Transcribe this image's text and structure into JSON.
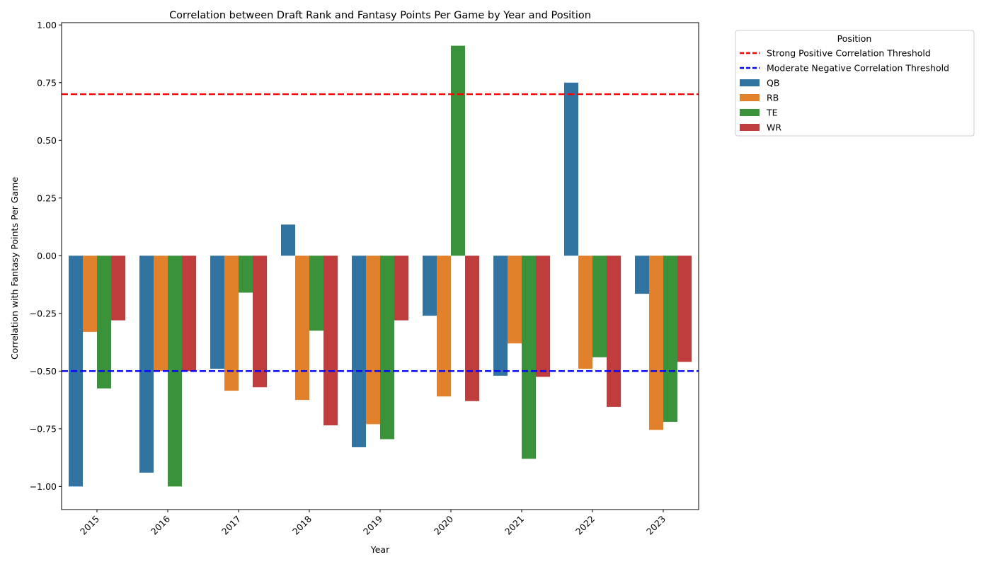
{
  "chart_data": {
    "type": "bar",
    "title": "Correlation between Draft Rank and Fantasy Points Per Game by Year and Position",
    "xlabel": "Year",
    "ylabel": "Correlation with Fantasy Points Per Game",
    "categories": [
      "2015",
      "2016",
      "2017",
      "2018",
      "2019",
      "2020",
      "2021",
      "2022",
      "2023"
    ],
    "ylim": [
      -1.1,
      1.01
    ],
    "yticks": [
      -1.0,
      -0.75,
      -0.5,
      -0.25,
      0.0,
      0.25,
      0.5,
      0.75,
      1.0
    ],
    "ytick_labels": [
      "−1.00",
      "−0.75",
      "−0.50",
      "−0.25",
      "0.00",
      "0.25",
      "0.50",
      "0.75",
      "1.00"
    ],
    "grid": false,
    "legend": {
      "title": "Position",
      "placement": "outside upper right"
    },
    "series": [
      {
        "name": "QB",
        "color": "#3274a1",
        "values": [
          -1.0,
          -0.94,
          -0.49,
          0.135,
          -0.83,
          -0.26,
          -0.52,
          0.75,
          -0.165
        ]
      },
      {
        "name": "RB",
        "color": "#e1812c",
        "values": [
          -0.33,
          -0.5,
          -0.585,
          -0.625,
          -0.73,
          -0.61,
          -0.38,
          -0.49,
          -0.755
        ]
      },
      {
        "name": "TE",
        "color": "#3a923a",
        "values": [
          -0.575,
          -1.0,
          -0.16,
          -0.325,
          -0.795,
          0.91,
          -0.88,
          -0.44,
          -0.72
        ]
      },
      {
        "name": "WR",
        "color": "#c03d3e",
        "values": [
          -0.28,
          -0.5,
          -0.57,
          -0.735,
          -0.28,
          -0.63,
          -0.525,
          -0.655,
          -0.46
        ]
      }
    ],
    "reference_lines": [
      {
        "name": "Strong Positive Correlation Threshold",
        "value": 0.7,
        "color": "#ff0000",
        "style": "dashed"
      },
      {
        "name": "Moderate Negative Correlation Threshold",
        "value": -0.5,
        "color": "#0000ff",
        "style": "dashed"
      }
    ]
  }
}
